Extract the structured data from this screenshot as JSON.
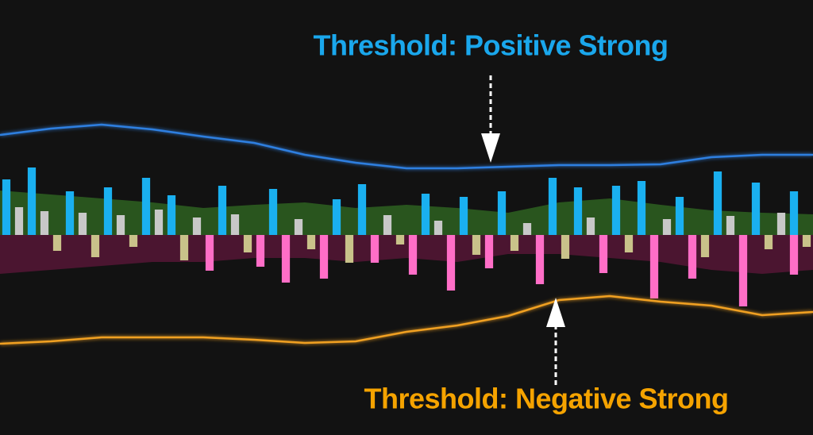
{
  "chart_data": {
    "type": "bar",
    "xlim": [
      0,
      64
    ],
    "ylim": [
      -252,
      296
    ],
    "series": [
      {
        "color": "#1ab0f0",
        "x": [
          0,
          2,
          5,
          8,
          11,
          13,
          17,
          21,
          26,
          28,
          33,
          36,
          39,
          43,
          45,
          48,
          50,
          53,
          56,
          59,
          62
        ],
        "values": [
          70,
          85,
          55,
          60,
          72,
          50,
          62,
          58,
          45,
          64,
          52,
          48,
          55,
          72,
          60,
          62,
          68,
          48,
          80,
          66,
          55
        ]
      },
      {
        "color": "#c8c8c8",
        "x": [
          1,
          3,
          6,
          9,
          12,
          15,
          18,
          23,
          30,
          34,
          41,
          46,
          52,
          57,
          61
        ],
        "values": [
          35,
          30,
          28,
          25,
          32,
          22,
          26,
          20,
          25,
          18,
          15,
          22,
          20,
          24,
          28
        ]
      },
      {
        "color": "#c9c28a",
        "x": [
          4,
          7,
          10,
          14,
          19,
          24,
          27,
          31,
          37,
          40,
          44,
          49,
          55,
          60,
          63
        ],
        "values": [
          -20,
          -28,
          -15,
          -32,
          -22,
          -18,
          -35,
          -12,
          -25,
          -20,
          -30,
          -22,
          -28,
          -18,
          -15
        ]
      },
      {
        "color": "#ff6ec7",
        "x": [
          16,
          20,
          22,
          25,
          29,
          32,
          35,
          38,
          42,
          47,
          51,
          54,
          58,
          62
        ],
        "values": [
          -45,
          -40,
          -60,
          -55,
          -35,
          -50,
          -70,
          -42,
          -62,
          -48,
          -80,
          -55,
          -90,
          -50
        ]
      }
    ],
    "areas": [
      {
        "color": "#3c8c28",
        "x": [
          0,
          4,
          8,
          12,
          16,
          20,
          24,
          28,
          32,
          36,
          40,
          44,
          48,
          52,
          56,
          60,
          64
        ],
        "values": [
          56,
          51,
          46,
          41,
          34,
          38,
          41,
          34,
          38,
          34,
          28,
          41,
          46,
          38,
          31,
          28,
          26
        ]
      },
      {
        "color": "#7a1848",
        "x": [
          0,
          4,
          8,
          12,
          16,
          20,
          24,
          28,
          32,
          36,
          40,
          44,
          48,
          52,
          56,
          60,
          64
        ],
        "values": [
          -49,
          -44,
          -39,
          -34,
          -34,
          -29,
          -29,
          -34,
          -29,
          -34,
          -24,
          -24,
          -29,
          -34,
          -44,
          -49,
          -44
        ]
      }
    ],
    "lines": [
      {
        "color": "#2f7fe0",
        "x": [
          0,
          4,
          8,
          12,
          16,
          20,
          24,
          28,
          32,
          36,
          40,
          44,
          48,
          52,
          56,
          60,
          64
        ],
        "values": [
          126,
          134,
          139,
          133,
          124,
          116,
          101,
          91,
          84,
          84,
          86,
          88,
          88,
          89,
          98,
          101,
          101
        ]
      },
      {
        "color": "#f0a020",
        "x": [
          0,
          4,
          8,
          12,
          16,
          20,
          24,
          28,
          32,
          36,
          40,
          44,
          48,
          52,
          56,
          60,
          64
        ],
        "values": [
          -137,
          -134,
          -129,
          -129,
          -129,
          -132,
          -136,
          -134,
          -122,
          -114,
          -102,
          -82,
          -77,
          -84,
          -89,
          -101,
          -97
        ]
      }
    ],
    "annotations": [
      {
        "text": "Threshold: Positive Strong",
        "color": "#1aa7ec"
      },
      {
        "text": "Threshold: Negative Strong",
        "color": "#f5a300"
      }
    ]
  }
}
